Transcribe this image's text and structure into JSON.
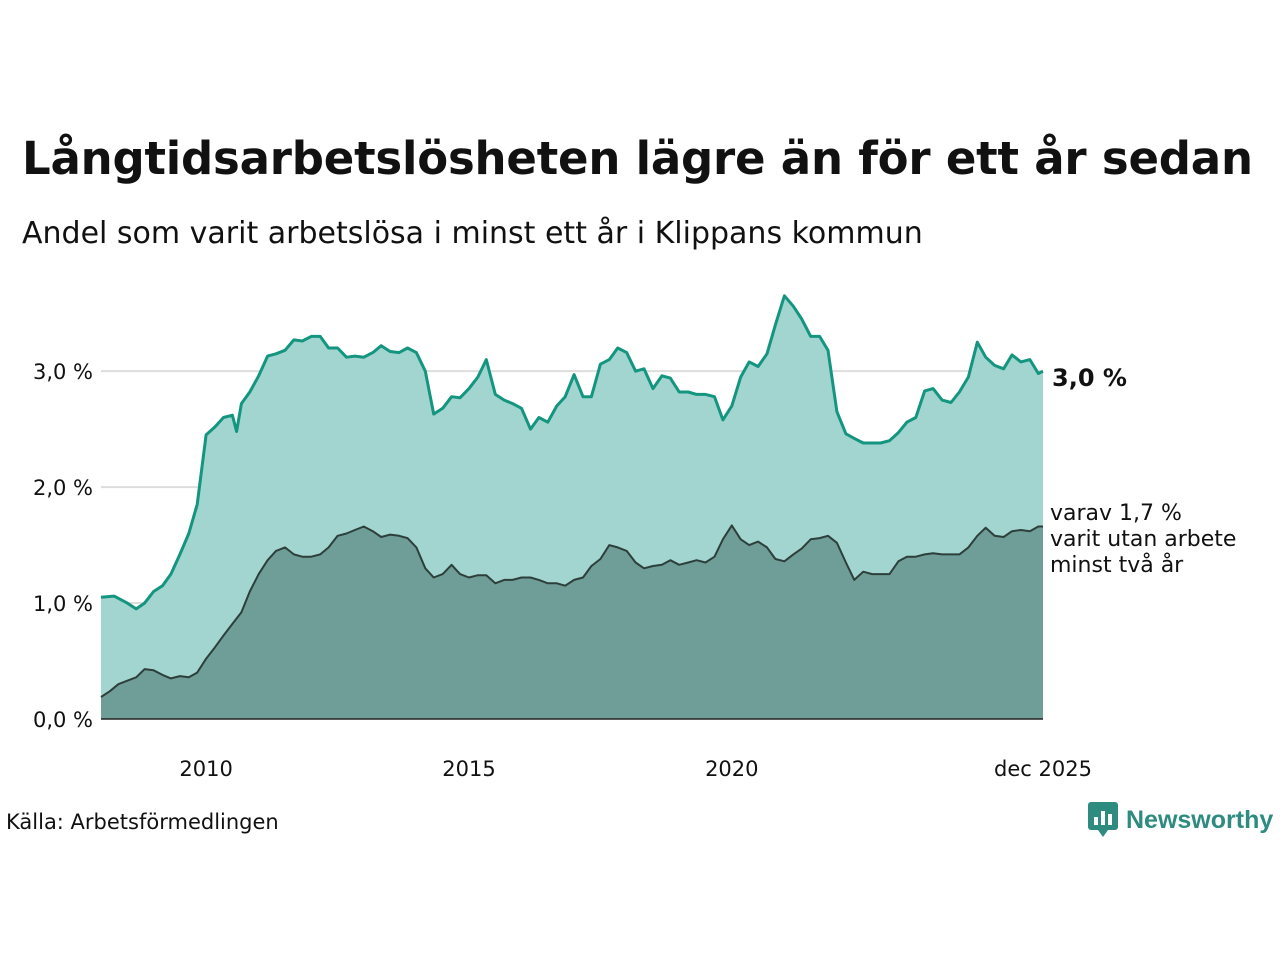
{
  "title": "Långtidsarbetslösheten lägre än för ett år sedan",
  "subtitle": "Andel som varit arbetslösa i minst ett år i Klippans kommun",
  "source": "Källa: Arbetsförmedlingen",
  "brand": "Newsworthy",
  "colors": {
    "series_one_line": "#13957f",
    "series_one_fill": "#a3d5d0",
    "series_two_line": "#2d3f3b",
    "series_two_fill": "#6f9e98",
    "grid": "#dddddd",
    "brand": "#2e8b80"
  },
  "chart_data": {
    "type": "area",
    "title": "Långtidsarbetslösheten lägre än för ett år sedan",
    "xlabel": "",
    "ylabel": "",
    "ylim": [
      0,
      3.7
    ],
    "xlim": [
      2008.0,
      2025.92
    ],
    "y_ticks": [
      0.0,
      1.0,
      2.0,
      3.0
    ],
    "y_tick_labels": [
      "0,0 %",
      "1,0 %",
      "2,0 %",
      "3,0 %"
    ],
    "x_ticks": [
      2010,
      2015,
      2020,
      2025.92
    ],
    "x_tick_labels": [
      "2010",
      "2015",
      "2020",
      "dec 2025"
    ],
    "grid": true,
    "series": [
      {
        "name": "Minst ett år",
        "end_label": "3,0 %",
        "points": [
          [
            2008.0,
            1.05
          ],
          [
            2008.25,
            1.06
          ],
          [
            2008.5,
            1.0
          ],
          [
            2008.67,
            0.95
          ],
          [
            2008.83,
            1.0
          ],
          [
            2009.0,
            1.1
          ],
          [
            2009.17,
            1.15
          ],
          [
            2009.33,
            1.25
          ],
          [
            2009.5,
            1.42
          ],
          [
            2009.67,
            1.6
          ],
          [
            2009.83,
            1.85
          ],
          [
            2010.0,
            2.45
          ],
          [
            2010.17,
            2.52
          ],
          [
            2010.33,
            2.6
          ],
          [
            2010.5,
            2.62
          ],
          [
            2010.58,
            2.48
          ],
          [
            2010.67,
            2.72
          ],
          [
            2010.83,
            2.82
          ],
          [
            2011.0,
            2.96
          ],
          [
            2011.17,
            3.13
          ],
          [
            2011.33,
            3.15
          ],
          [
            2011.5,
            3.18
          ],
          [
            2011.67,
            3.27
          ],
          [
            2011.83,
            3.26
          ],
          [
            2012.0,
            3.3
          ],
          [
            2012.17,
            3.3
          ],
          [
            2012.33,
            3.2
          ],
          [
            2012.5,
            3.2
          ],
          [
            2012.67,
            3.12
          ],
          [
            2012.83,
            3.13
          ],
          [
            2013.0,
            3.12
          ],
          [
            2013.17,
            3.16
          ],
          [
            2013.33,
            3.22
          ],
          [
            2013.5,
            3.17
          ],
          [
            2013.67,
            3.16
          ],
          [
            2013.83,
            3.2
          ],
          [
            2014.0,
            3.16
          ],
          [
            2014.17,
            3.0
          ],
          [
            2014.33,
            2.63
          ],
          [
            2014.5,
            2.68
          ],
          [
            2014.67,
            2.78
          ],
          [
            2014.83,
            2.77
          ],
          [
            2015.0,
            2.85
          ],
          [
            2015.17,
            2.95
          ],
          [
            2015.33,
            3.1
          ],
          [
            2015.5,
            2.8
          ],
          [
            2015.67,
            2.75
          ],
          [
            2015.83,
            2.72
          ],
          [
            2016.0,
            2.68
          ],
          [
            2016.17,
            2.5
          ],
          [
            2016.33,
            2.6
          ],
          [
            2016.5,
            2.56
          ],
          [
            2016.67,
            2.7
          ],
          [
            2016.83,
            2.78
          ],
          [
            2017.0,
            2.97
          ],
          [
            2017.17,
            2.78
          ],
          [
            2017.33,
            2.78
          ],
          [
            2017.5,
            3.06
          ],
          [
            2017.67,
            3.1
          ],
          [
            2017.83,
            3.2
          ],
          [
            2018.0,
            3.16
          ],
          [
            2018.17,
            3.0
          ],
          [
            2018.33,
            3.02
          ],
          [
            2018.5,
            2.85
          ],
          [
            2018.67,
            2.96
          ],
          [
            2018.83,
            2.94
          ],
          [
            2019.0,
            2.82
          ],
          [
            2019.17,
            2.82
          ],
          [
            2019.33,
            2.8
          ],
          [
            2019.5,
            2.8
          ],
          [
            2019.67,
            2.78
          ],
          [
            2019.83,
            2.58
          ],
          [
            2020.0,
            2.7
          ],
          [
            2020.17,
            2.95
          ],
          [
            2020.33,
            3.08
          ],
          [
            2020.5,
            3.04
          ],
          [
            2020.67,
            3.15
          ],
          [
            2020.83,
            3.4
          ],
          [
            2021.0,
            3.65
          ],
          [
            2021.17,
            3.56
          ],
          [
            2021.33,
            3.45
          ],
          [
            2021.5,
            3.3
          ],
          [
            2021.67,
            3.3
          ],
          [
            2021.83,
            3.18
          ],
          [
            2022.0,
            2.65
          ],
          [
            2022.17,
            2.46
          ],
          [
            2022.33,
            2.42
          ],
          [
            2022.5,
            2.38
          ],
          [
            2022.67,
            2.38
          ],
          [
            2022.83,
            2.38
          ],
          [
            2023.0,
            2.4
          ],
          [
            2023.17,
            2.47
          ],
          [
            2023.33,
            2.56
          ],
          [
            2023.5,
            2.6
          ],
          [
            2023.67,
            2.83
          ],
          [
            2023.83,
            2.85
          ],
          [
            2024.0,
            2.75
          ],
          [
            2024.17,
            2.73
          ],
          [
            2024.33,
            2.82
          ],
          [
            2024.5,
            2.95
          ],
          [
            2024.67,
            3.25
          ],
          [
            2024.83,
            3.12
          ],
          [
            2025.0,
            3.05
          ],
          [
            2025.17,
            3.02
          ],
          [
            2025.33,
            3.14
          ],
          [
            2025.5,
            3.08
          ],
          [
            2025.67,
            3.1
          ],
          [
            2025.83,
            2.98
          ],
          [
            2025.92,
            3.0
          ]
        ]
      },
      {
        "name": "varav minst två år",
        "end_label_lines": [
          "varav 1,7 %",
          "varit utan arbete",
          "minst två år"
        ],
        "points": [
          [
            2008.0,
            0.19
          ],
          [
            2008.17,
            0.24
          ],
          [
            2008.33,
            0.3
          ],
          [
            2008.5,
            0.33
          ],
          [
            2008.67,
            0.36
          ],
          [
            2008.83,
            0.43
          ],
          [
            2009.0,
            0.42
          ],
          [
            2009.17,
            0.38
          ],
          [
            2009.33,
            0.35
          ],
          [
            2009.5,
            0.37
          ],
          [
            2009.67,
            0.36
          ],
          [
            2009.83,
            0.4
          ],
          [
            2010.0,
            0.52
          ],
          [
            2010.17,
            0.62
          ],
          [
            2010.33,
            0.72
          ],
          [
            2010.5,
            0.82
          ],
          [
            2010.67,
            0.92
          ],
          [
            2010.83,
            1.1
          ],
          [
            2011.0,
            1.25
          ],
          [
            2011.17,
            1.37
          ],
          [
            2011.33,
            1.45
          ],
          [
            2011.5,
            1.48
          ],
          [
            2011.67,
            1.42
          ],
          [
            2011.83,
            1.4
          ],
          [
            2012.0,
            1.4
          ],
          [
            2012.17,
            1.42
          ],
          [
            2012.33,
            1.48
          ],
          [
            2012.5,
            1.58
          ],
          [
            2012.67,
            1.6
          ],
          [
            2012.83,
            1.63
          ],
          [
            2013.0,
            1.66
          ],
          [
            2013.17,
            1.62
          ],
          [
            2013.33,
            1.57
          ],
          [
            2013.5,
            1.59
          ],
          [
            2013.67,
            1.58
          ],
          [
            2013.83,
            1.56
          ],
          [
            2014.0,
            1.48
          ],
          [
            2014.17,
            1.3
          ],
          [
            2014.33,
            1.22
          ],
          [
            2014.5,
            1.25
          ],
          [
            2014.67,
            1.33
          ],
          [
            2014.83,
            1.25
          ],
          [
            2015.0,
            1.22
          ],
          [
            2015.17,
            1.24
          ],
          [
            2015.33,
            1.24
          ],
          [
            2015.5,
            1.17
          ],
          [
            2015.67,
            1.2
          ],
          [
            2015.83,
            1.2
          ],
          [
            2016.0,
            1.22
          ],
          [
            2016.17,
            1.22
          ],
          [
            2016.33,
            1.2
          ],
          [
            2016.5,
            1.17
          ],
          [
            2016.67,
            1.17
          ],
          [
            2016.83,
            1.15
          ],
          [
            2017.0,
            1.2
          ],
          [
            2017.17,
            1.22
          ],
          [
            2017.33,
            1.32
          ],
          [
            2017.5,
            1.38
          ],
          [
            2017.67,
            1.5
          ],
          [
            2017.83,
            1.48
          ],
          [
            2018.0,
            1.45
          ],
          [
            2018.17,
            1.35
          ],
          [
            2018.33,
            1.3
          ],
          [
            2018.5,
            1.32
          ],
          [
            2018.67,
            1.33
          ],
          [
            2018.83,
            1.37
          ],
          [
            2019.0,
            1.33
          ],
          [
            2019.17,
            1.35
          ],
          [
            2019.33,
            1.37
          ],
          [
            2019.5,
            1.35
          ],
          [
            2019.67,
            1.4
          ],
          [
            2019.83,
            1.55
          ],
          [
            2020.0,
            1.67
          ],
          [
            2020.17,
            1.55
          ],
          [
            2020.33,
            1.5
          ],
          [
            2020.5,
            1.53
          ],
          [
            2020.67,
            1.48
          ],
          [
            2020.83,
            1.38
          ],
          [
            2021.0,
            1.36
          ],
          [
            2021.17,
            1.42
          ],
          [
            2021.33,
            1.47
          ],
          [
            2021.5,
            1.55
          ],
          [
            2021.67,
            1.56
          ],
          [
            2021.83,
            1.58
          ],
          [
            2022.0,
            1.52
          ],
          [
            2022.17,
            1.35
          ],
          [
            2022.33,
            1.2
          ],
          [
            2022.5,
            1.27
          ],
          [
            2022.67,
            1.25
          ],
          [
            2022.83,
            1.25
          ],
          [
            2023.0,
            1.25
          ],
          [
            2023.17,
            1.36
          ],
          [
            2023.33,
            1.4
          ],
          [
            2023.5,
            1.4
          ],
          [
            2023.67,
            1.42
          ],
          [
            2023.83,
            1.43
          ],
          [
            2024.0,
            1.42
          ],
          [
            2024.17,
            1.42
          ],
          [
            2024.33,
            1.42
          ],
          [
            2024.5,
            1.48
          ],
          [
            2024.67,
            1.58
          ],
          [
            2024.83,
            1.65
          ],
          [
            2025.0,
            1.58
          ],
          [
            2025.17,
            1.57
          ],
          [
            2025.33,
            1.62
          ],
          [
            2025.5,
            1.63
          ],
          [
            2025.67,
            1.62
          ],
          [
            2025.83,
            1.66
          ],
          [
            2025.92,
            1.66
          ]
        ]
      }
    ]
  }
}
